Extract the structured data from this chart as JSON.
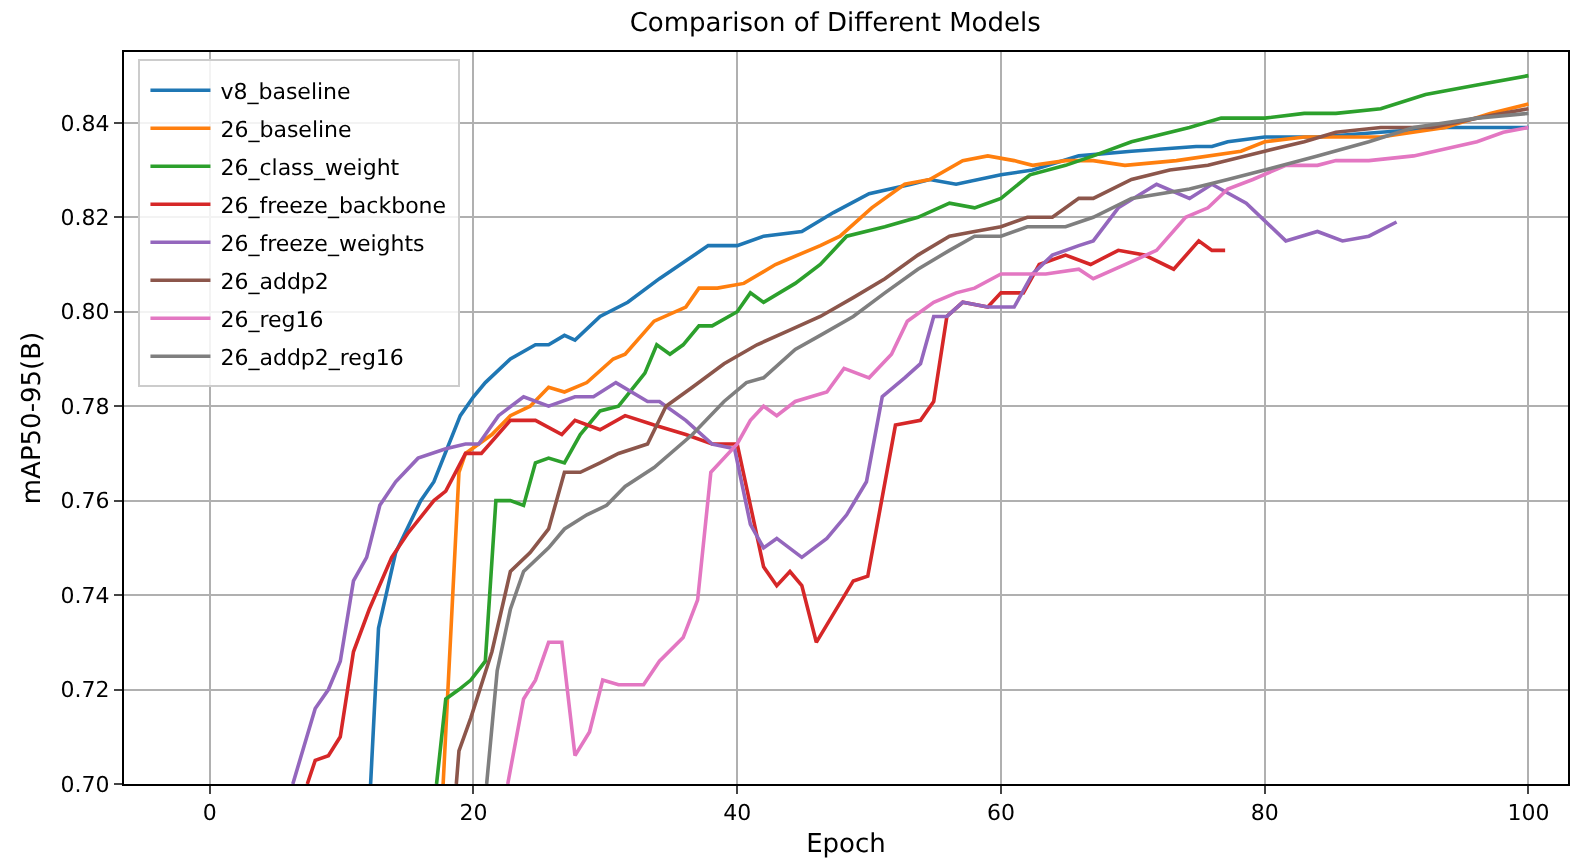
{
  "chart_data": {
    "type": "line",
    "title": "Comparison of Different Models",
    "xlabel": "Epoch",
    "ylabel": "mAP50-95(B)",
    "xlim": [
      -6.5,
      103
    ],
    "xticks": [
      0,
      20,
      40,
      60,
      80,
      100
    ],
    "ylim": [
      0.7,
      0.855
    ],
    "yticks": [
      {
        "value": 0.7,
        "label": "0.70"
      },
      0.72,
      0.74,
      0.76,
      0.78,
      {
        "value": 0.8,
        "label": "0.80"
      },
      0.82,
      0.84
    ],
    "grid": true,
    "legend": "top left",
    "marker": "none",
    "line_style": "solid",
    "series": [
      {
        "name": "v8_baseline",
        "color": "#1f77b4",
        "x": [
          12.2,
          12.8,
          14.1,
          16,
          17,
          19,
          20,
          20.9,
          22.8,
          24.7,
          25.7,
          26.9,
          27.7,
          29.6,
          31.7,
          34.1,
          37.8,
          40,
          42,
          44.9,
          47.3,
          50,
          53.2,
          54.6,
          56.6,
          60,
          62.4,
          65.9,
          69.9,
          74.8,
          76,
          77.2,
          80,
          84,
          88.8,
          93.7,
          100
        ],
        "values": [
          0.7,
          0.733,
          0.749,
          0.76,
          0.764,
          0.778,
          0.782,
          0.785,
          0.79,
          0.793,
          0.793,
          0.795,
          0.794,
          0.799,
          0.802,
          0.807,
          0.814,
          0.814,
          0.816,
          0.817,
          0.821,
          0.825,
          0.827,
          0.828,
          0.827,
          0.829,
          0.83,
          0.833,
          0.834,
          0.835,
          0.835,
          0.836,
          0.837,
          0.837,
          0.838,
          0.839,
          0.839
        ]
      },
      {
        "name": "26_baseline",
        "color": "#ff7f0e",
        "x": [
          17.7,
          18.9,
          19.4,
          21.4,
          22.8,
          24.3,
          25.7,
          26.9,
          28.6,
          30.6,
          31.5,
          33.7,
          36.1,
          37.1,
          38.5,
          40.5,
          42.9,
          46.3,
          47.8,
          50.2,
          52.7,
          54.6,
          57.1,
          59,
          61,
          62.4,
          64.9,
          67,
          69.4,
          73.3,
          78.2,
          80,
          83,
          88.8,
          93.7,
          97.1,
          100
        ],
        "values": [
          0.7,
          0.766,
          0.77,
          0.774,
          0.778,
          0.78,
          0.784,
          0.783,
          0.785,
          0.79,
          0.791,
          0.798,
          0.801,
          0.805,
          0.805,
          0.806,
          0.81,
          0.814,
          0.816,
          0.822,
          0.827,
          0.828,
          0.832,
          0.833,
          0.832,
          0.831,
          0.832,
          0.832,
          0.831,
          0.832,
          0.834,
          0.836,
          0.837,
          0.837,
          0.839,
          0.842,
          0.844
        ]
      },
      {
        "name": "26_class_weight",
        "color": "#2ca02c",
        "x": [
          17.2,
          17.9,
          18.9,
          19.8,
          20.9,
          21.7,
          22.8,
          23.8,
          24.7,
          25.7,
          26.9,
          28.1,
          29.6,
          31,
          33,
          33.9,
          34.9,
          35.9,
          37.1,
          38.1,
          40,
          41,
          42,
          44.4,
          46.3,
          48.3,
          51.2,
          53.7,
          56.1,
          58,
          60,
          62.2,
          64.9,
          67,
          69.9,
          74.3,
          76.7,
          80,
          83,
          85.4,
          88.8,
          92.2,
          96.1,
          100
        ],
        "values": [
          0.7,
          0.718,
          0.72,
          0.722,
          0.726,
          0.76,
          0.76,
          0.759,
          0.768,
          0.769,
          0.768,
          0.774,
          0.779,
          0.78,
          0.787,
          0.793,
          0.791,
          0.793,
          0.797,
          0.797,
          0.8,
          0.804,
          0.802,
          0.806,
          0.81,
          0.816,
          0.818,
          0.82,
          0.823,
          0.822,
          0.824,
          0.829,
          0.831,
          0.833,
          0.836,
          0.839,
          0.841,
          0.841,
          0.842,
          0.842,
          0.843,
          0.846,
          0.848,
          0.85
        ]
      },
      {
        "name": "26_freeze_backbone",
        "color": "#d62728",
        "x": [
          7.4,
          8,
          9,
          9.9,
          10.9,
          12.1,
          13.8,
          15,
          17,
          17.9,
          19.4,
          20.6,
          22.8,
          24.7,
          26.7,
          27.7,
          29.6,
          31.5,
          33.7,
          36.1,
          38.1,
          40,
          42,
          43,
          44,
          44.9,
          46,
          48.8,
          49.9,
          52,
          53.9,
          54.9,
          55.9,
          57.1,
          59,
          60,
          61.7,
          62.9,
          64.9,
          66.8,
          68.9,
          70.9,
          73.1,
          75,
          76,
          77
        ],
        "values": [
          0.7,
          0.705,
          0.706,
          0.71,
          0.728,
          0.737,
          0.748,
          0.753,
          0.76,
          0.762,
          0.77,
          0.77,
          0.777,
          0.777,
          0.774,
          0.777,
          0.775,
          0.778,
          0.776,
          0.774,
          0.772,
          0.772,
          0.746,
          0.742,
          0.745,
          0.742,
          0.73,
          0.743,
          0.744,
          0.776,
          0.777,
          0.781,
          0.799,
          0.802,
          0.801,
          0.804,
          0.804,
          0.81,
          0.812,
          0.81,
          0.813,
          0.812,
          0.809,
          0.815,
          0.813,
          0.813
        ]
      },
      {
        "name": "26_freeze_weights",
        "color": "#9467bd",
        "x": [
          6.3,
          8,
          9,
          9.9,
          10.9,
          11.9,
          12.9,
          14.1,
          15.8,
          17.9,
          19.4,
          20.4,
          21.9,
          23.8,
          25.7,
          27.7,
          29.1,
          30.8,
          33.2,
          34.1,
          36.1,
          38.1,
          39.8,
          41,
          42,
          43,
          44.9,
          46.8,
          48.3,
          49.8,
          51,
          52.7,
          53.9,
          54.9,
          55.9,
          57.1,
          59,
          61,
          62.4,
          63.9,
          65.9,
          67,
          68.9,
          71.8,
          74.3,
          76,
          78.6,
          81.6,
          84,
          85.9,
          87.9,
          90
        ],
        "values": [
          0.7,
          0.716,
          0.72,
          0.726,
          0.743,
          0.748,
          0.759,
          0.764,
          0.769,
          0.771,
          0.772,
          0.772,
          0.778,
          0.782,
          0.78,
          0.782,
          0.782,
          0.785,
          0.781,
          0.781,
          0.777,
          0.772,
          0.771,
          0.755,
          0.75,
          0.752,
          0.748,
          0.752,
          0.757,
          0.764,
          0.782,
          0.786,
          0.789,
          0.799,
          0.799,
          0.802,
          0.801,
          0.801,
          0.808,
          0.812,
          0.814,
          0.815,
          0.822,
          0.827,
          0.824,
          0.827,
          0.823,
          0.815,
          0.817,
          0.815,
          0.816,
          0.819
        ]
      },
      {
        "name": "26_addp2",
        "color": "#8c564b",
        "x": [
          18.7,
          18.9,
          19.8,
          21.4,
          22.8,
          24.3,
          25.7,
          26.9,
          28.1,
          29.6,
          31,
          33.2,
          34.6,
          36.6,
          39,
          41.5,
          43.9,
          46.3,
          48.8,
          51.2,
          53.7,
          56.1,
          58,
          60,
          62,
          63.9,
          65.9,
          67,
          69.9,
          72.8,
          75.7,
          80,
          83,
          85.4,
          88.8,
          92.7,
          96.1,
          100
        ],
        "values": [
          0.7,
          0.707,
          0.714,
          0.728,
          0.745,
          0.749,
          0.754,
          0.766,
          0.766,
          0.768,
          0.77,
          0.772,
          0.78,
          0.784,
          0.789,
          0.793,
          0.796,
          0.799,
          0.803,
          0.807,
          0.812,
          0.816,
          0.817,
          0.818,
          0.82,
          0.82,
          0.824,
          0.824,
          0.828,
          0.83,
          0.831,
          0.834,
          0.836,
          0.838,
          0.839,
          0.839,
          0.841,
          0.843
        ]
      },
      {
        "name": "26_reg16",
        "color": "#e377c2",
        "x": [
          22.6,
          23.8,
          24.7,
          25.7,
          26.7,
          27.7,
          28.8,
          29.8,
          31,
          32.9,
          34.1,
          35.9,
          37,
          38,
          40,
          41,
          42,
          43,
          44.4,
          46.8,
          48.1,
          50,
          51.7,
          52.9,
          54.9,
          56.6,
          58,
          60,
          63.4,
          65.9,
          67,
          69.4,
          71.8,
          74,
          75.7,
          77.2,
          79.1,
          81.6,
          84,
          85.4,
          87.9,
          91.3,
          96.1,
          98.1,
          100
        ],
        "values": [
          0.7,
          0.718,
          0.722,
          0.73,
          0.73,
          0.706,
          0.711,
          0.722,
          0.721,
          0.721,
          0.726,
          0.731,
          0.739,
          0.766,
          0.772,
          0.777,
          0.78,
          0.778,
          0.781,
          0.783,
          0.788,
          0.786,
          0.791,
          0.798,
          0.802,
          0.804,
          0.805,
          0.808,
          0.808,
          0.809,
          0.807,
          0.81,
          0.813,
          0.82,
          0.822,
          0.826,
          0.828,
          0.831,
          0.831,
          0.832,
          0.832,
          0.833,
          0.836,
          0.838,
          0.839
        ]
      },
      {
        "name": "26_addp2_reg16",
        "color": "#7f7f7f",
        "x": [
          21,
          21.8,
          22.8,
          23.8,
          25.7,
          26.9,
          28.6,
          30.1,
          31.5,
          33.7,
          36.6,
          39,
          40.7,
          42,
          44.4,
          46.3,
          48.8,
          51.2,
          53.7,
          56.1,
          58,
          60,
          62,
          64.9,
          67,
          69.9,
          74.3,
          77.2,
          80,
          84,
          87.9,
          91.3,
          96.1,
          100
        ],
        "values": [
          0.7,
          0.724,
          0.737,
          0.745,
          0.75,
          0.754,
          0.757,
          0.759,
          0.763,
          0.767,
          0.774,
          0.781,
          0.785,
          0.786,
          0.792,
          0.795,
          0.799,
          0.804,
          0.809,
          0.813,
          0.816,
          0.816,
          0.818,
          0.818,
          0.82,
          0.824,
          0.826,
          0.828,
          0.83,
          0.833,
          0.836,
          0.839,
          0.841,
          0.842
        ]
      }
    ]
  }
}
